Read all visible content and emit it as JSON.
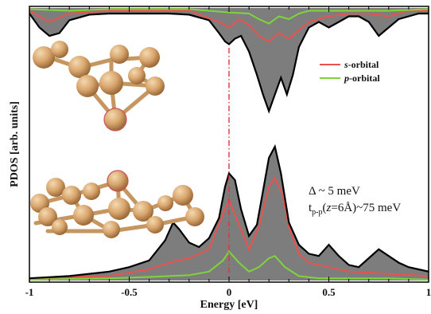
{
  "chart_data": {
    "type": "area",
    "xlabel": "Energy [eV]",
    "ylabel": "PDOS [arb. units]",
    "xlim": [
      -1,
      1
    ],
    "x_ticks": [
      {
        "value": -1,
        "label": "-1"
      },
      {
        "value": -0.5,
        "label": "-0.5"
      },
      {
        "value": 0,
        "label": "0"
      },
      {
        "value": 0.5,
        "label": "0.5"
      },
      {
        "value": 1,
        "label": "1"
      }
    ],
    "fermi_level": 0,
    "legend": {
      "position": "right",
      "entries": [
        {
          "label_italic": "s",
          "label_rest": "-orbital",
          "color": "#e8534f"
        },
        {
          "label_italic": "p",
          "label_rest": "-orbital",
          "color": "#7fd43a"
        }
      ]
    },
    "annotation": {
      "line1": "Δ ~ 5 meV",
      "line2_main": "t",
      "line2_sub": "p-p",
      "line2_open": "(",
      "line2_z": "z",
      "line2_rest": "=6Å)~75 meV"
    },
    "top_panel": {
      "inverted": true,
      "total": {
        "x": [
          -1,
          -0.95,
          -0.9,
          -0.85,
          -0.8,
          -0.7,
          -0.6,
          -0.5,
          -0.4,
          -0.3,
          -0.2,
          -0.1,
          -0.05,
          -0.02,
          0,
          0.03,
          0.06,
          0.1,
          0.14,
          0.17,
          0.2,
          0.23,
          0.26,
          0.29,
          0.32,
          0.35,
          0.4,
          0.45,
          0.5,
          0.55,
          0.6,
          0.65,
          0.7,
          0.75,
          0.8,
          0.85,
          0.9,
          0.95,
          1
        ],
        "y": [
          0.1,
          0.35,
          0.5,
          0.45,
          0.22,
          0.12,
          0.1,
          0.1,
          0.1,
          0.1,
          0.12,
          0.22,
          0.45,
          0.6,
          0.65,
          0.55,
          0.5,
          0.78,
          1.2,
          1.55,
          1.85,
          1.55,
          1.25,
          1.55,
          1.2,
          0.7,
          0.35,
          0.25,
          0.35,
          0.25,
          0.15,
          0.15,
          0.25,
          0.5,
          0.35,
          0.2,
          0.15,
          0.1,
          0.1
        ]
      },
      "s_orbital": {
        "x": [
          -1,
          -0.9,
          -0.8,
          -0.6,
          -0.4,
          -0.2,
          -0.05,
          0,
          0.05,
          0.1,
          0.15,
          0.2,
          0.25,
          0.3,
          0.4,
          0.5,
          0.6,
          0.7,
          0.8,
          0.9,
          1
        ],
        "y": [
          0.05,
          0.25,
          0.1,
          0.05,
          0.05,
          0.05,
          0.25,
          0.35,
          0.2,
          0.3,
          0.5,
          0.6,
          0.45,
          0.55,
          0.25,
          0.15,
          0.1,
          0.1,
          0.15,
          0.05,
          0.05
        ]
      },
      "p_orbital": {
        "x": [
          -1,
          -0.8,
          -0.6,
          -0.4,
          -0.2,
          0,
          0.1,
          0.15,
          0.2,
          0.25,
          0.3,
          0.35,
          0.4,
          0.6,
          0.8,
          1
        ],
        "y": [
          0.02,
          0.05,
          0.02,
          0.02,
          0.02,
          0.08,
          0.1,
          0.2,
          0.28,
          0.15,
          0.2,
          0.1,
          0.05,
          0.05,
          0.05,
          0.02
        ]
      }
    },
    "bottom_panel": {
      "inverted": false,
      "total": {
        "x": [
          -1,
          -0.8,
          -0.6,
          -0.5,
          -0.4,
          -0.32,
          -0.28,
          -0.25,
          -0.2,
          -0.15,
          -0.1,
          -0.05,
          -0.02,
          0,
          0.03,
          0.06,
          0.1,
          0.14,
          0.17,
          0.2,
          0.23,
          0.26,
          0.3,
          0.35,
          0.4,
          0.45,
          0.5,
          0.55,
          0.6,
          0.65,
          0.7,
          0.75,
          0.8,
          0.85,
          0.9,
          0.95,
          1
        ],
        "y": [
          0.05,
          0.1,
          0.2,
          0.3,
          0.45,
          0.9,
          1.3,
          1.15,
          0.85,
          0.75,
          0.95,
          1.4,
          2.1,
          2.4,
          2.25,
          1.6,
          1.0,
          1.25,
          2.0,
          2.75,
          3.0,
          2.4,
          1.3,
          0.8,
          0.6,
          0.55,
          0.8,
          0.55,
          0.35,
          0.3,
          0.5,
          0.7,
          0.55,
          0.4,
          0.3,
          0.25,
          0.2
        ]
      },
      "s_orbital": {
        "x": [
          -1,
          -0.6,
          -0.4,
          -0.3,
          -0.2,
          -0.1,
          -0.03,
          0,
          0.05,
          0.1,
          0.15,
          0.2,
          0.23,
          0.27,
          0.3,
          0.35,
          0.4,
          0.5,
          0.6,
          0.8,
          1
        ],
        "y": [
          0.05,
          0.1,
          0.25,
          0.4,
          0.5,
          0.7,
          1.5,
          1.8,
          1.25,
          0.7,
          1.2,
          2.1,
          2.3,
          1.9,
          1.2,
          0.6,
          0.4,
          0.3,
          0.2,
          0.15,
          0.1
        ]
      },
      "p_orbital": {
        "x": [
          -1,
          -0.6,
          -0.4,
          -0.2,
          -0.1,
          -0.03,
          0,
          0.05,
          0.1,
          0.15,
          0.2,
          0.23,
          0.28,
          0.35,
          0.45,
          0.6,
          0.8,
          1
        ],
        "y": [
          0.02,
          0.05,
          0.08,
          0.12,
          0.2,
          0.45,
          0.65,
          0.4,
          0.2,
          0.3,
          0.5,
          0.55,
          0.3,
          0.1,
          0.05,
          0.05,
          0.05,
          0.02
        ]
      }
    },
    "grid": false,
    "colors": {
      "total_fill": "#7d7d7d",
      "total_line": "#000000",
      "fermi_line": "#e8323a"
    }
  }
}
